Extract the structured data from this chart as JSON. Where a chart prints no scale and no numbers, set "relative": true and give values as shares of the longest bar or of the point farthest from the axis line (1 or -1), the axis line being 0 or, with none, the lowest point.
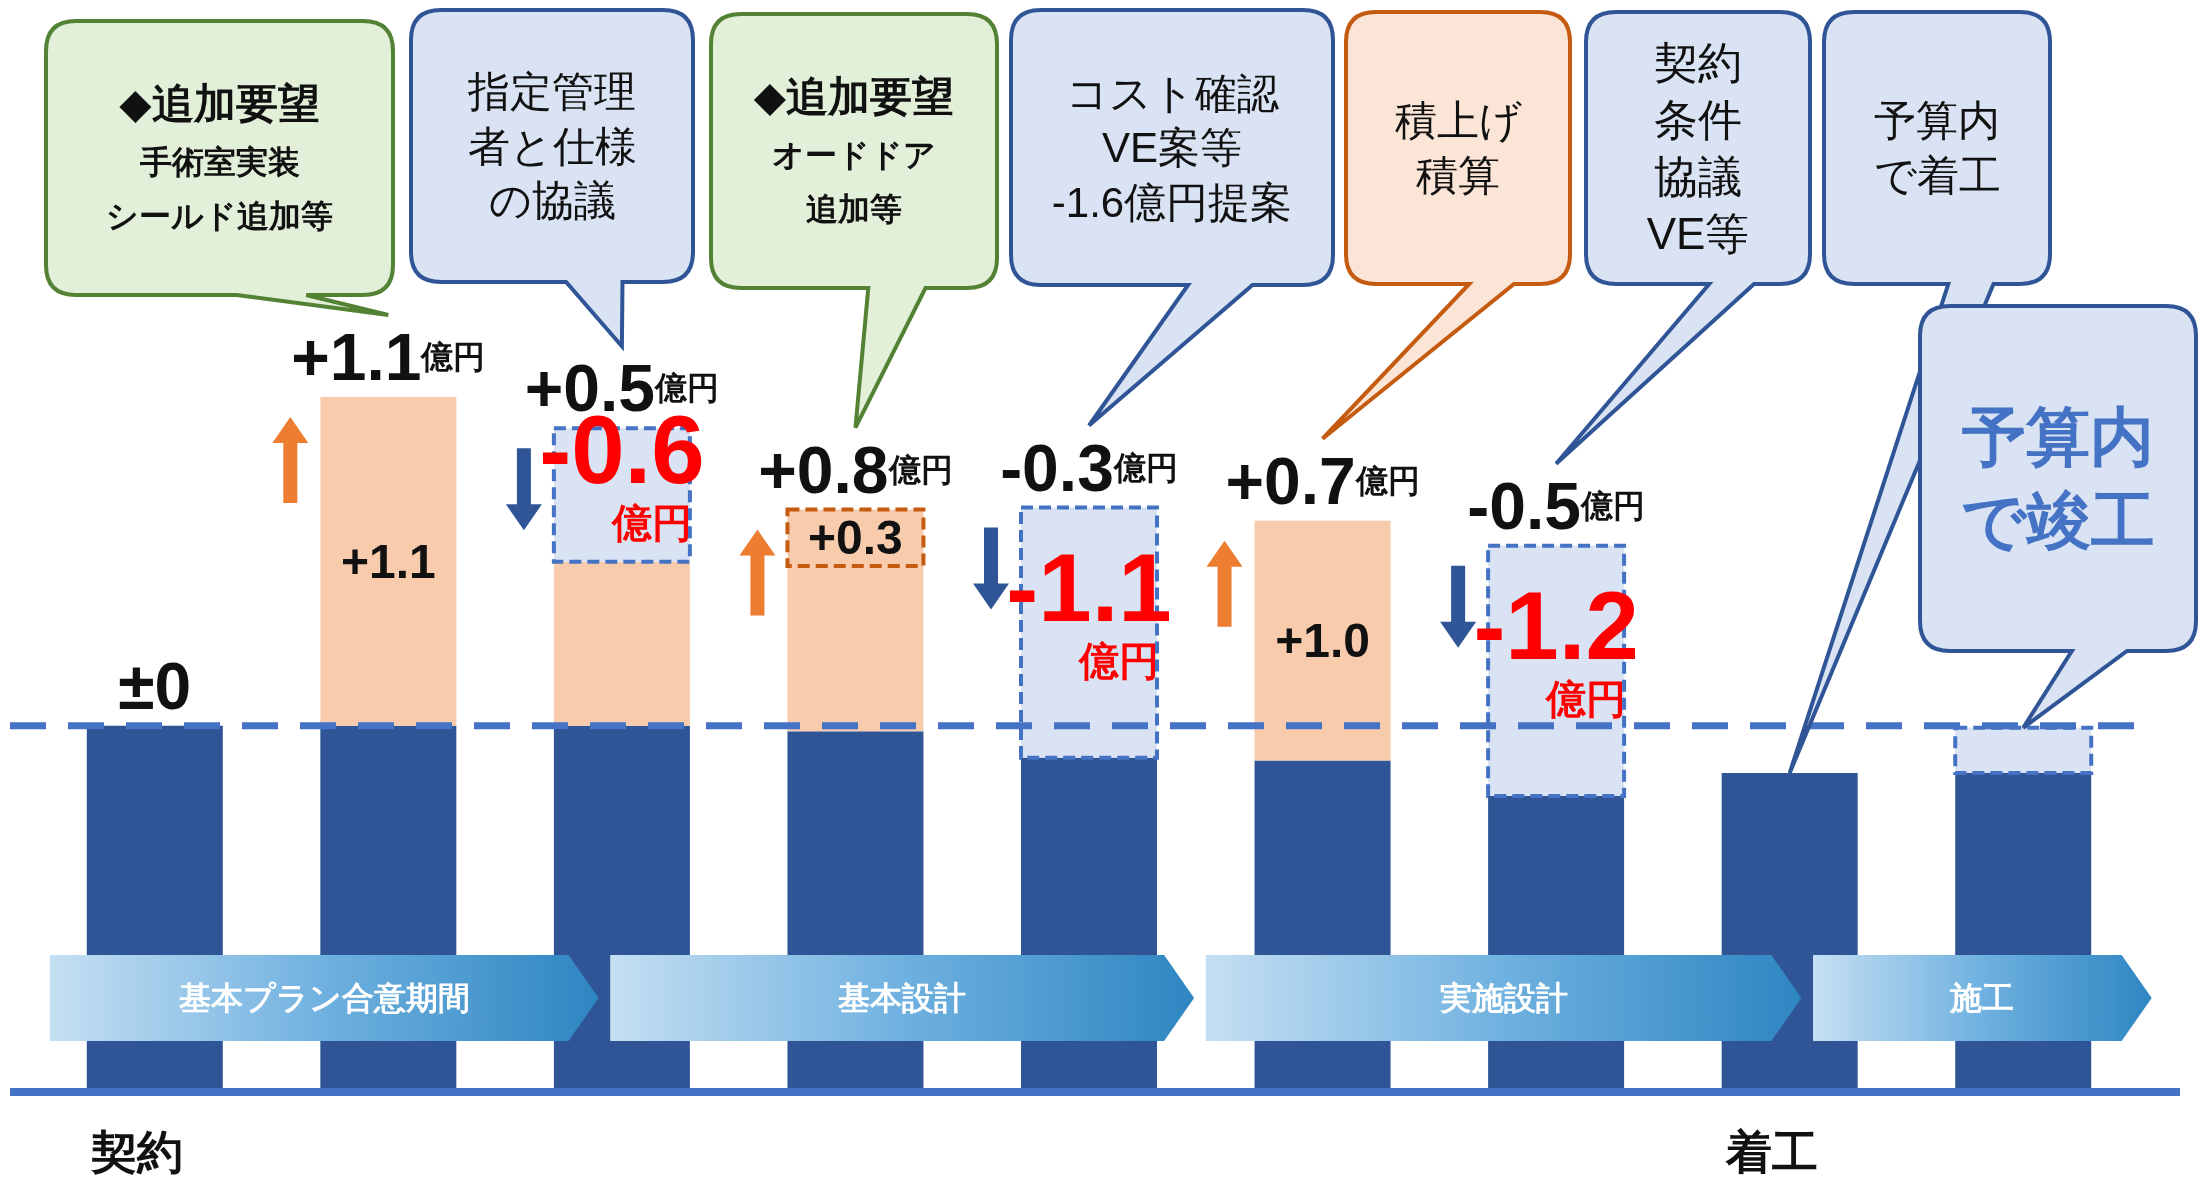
{
  "chart_data": {
    "type": "bar",
    "stacked": true,
    "relative": true,
    "categories": [
      "契約",
      null,
      null,
      null,
      null,
      null,
      null,
      "着工",
      null
    ],
    "series": [
      {
        "color": "#2f5597",
        "values": [
          0.527,
          0.527,
          0.527,
          0.519,
          0.481,
          0.477,
          0.426,
          0.459,
          0.459
        ]
      },
      {
        "color": "#f8cbad",
        "values": [
          null,
          0.473,
          0.236,
          0.238,
          null,
          0.345,
          null,
          null,
          null
        ]
      },
      {
        "color": "#f8cbad",
        "line_style": "dashed",
        "values": [
          null,
          null,
          null,
          0.081,
          null,
          null,
          null,
          null,
          null
        ]
      },
      {
        "color": "#dae3f3",
        "line_style": "dashed",
        "values": [
          null,
          null,
          0.192,
          null,
          0.36,
          null,
          0.36,
          null,
          0.065
        ]
      }
    ],
    "ref_lines": [
      {
        "axis": "y",
        "value": 0.527,
        "color": "#4472c4",
        "line_style": "dashed"
      }
    ],
    "annotations": [
      "◆追加要望手術室実装シールド追加等",
      "指定管理者と仕様の協議",
      "◆追加要望オードドア追加等",
      "コスト確認VE案等-1.6億円提案",
      "積上げ積算",
      "契約条件協議VE等",
      "予算内で着工",
      "予算内で竣工",
      "基本プラン合意期間",
      "基本設計",
      "実施設計",
      "施工",
      "±0",
      "+1.1億円",
      "+0.5億円",
      "+0.8億円",
      "-0.3億円",
      "+0.7億円",
      "-0.5億円",
      "+1.1",
      "-0.6億円",
      "+0.3",
      "-1.1億円",
      "+1.0",
      "-1.2億円"
    ]
  }
}
